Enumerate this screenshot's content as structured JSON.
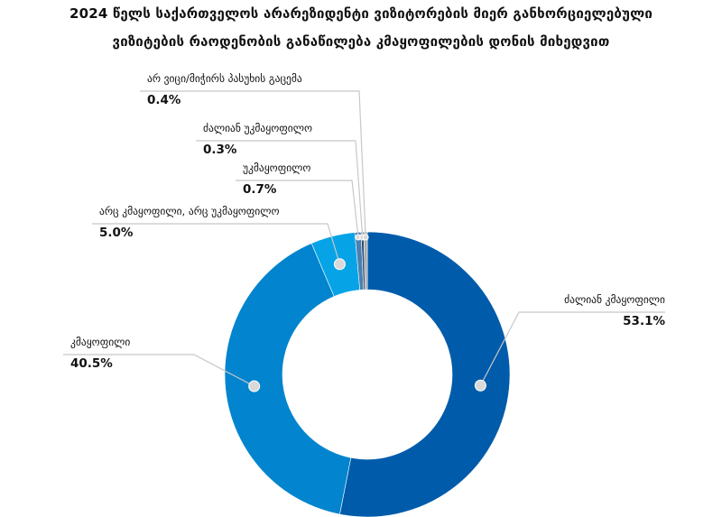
{
  "title_line1": "2024 წელს საქართველოს არარეზიდენტი ვიზიტორების მიერ განხორციელებული",
  "title_line2": "ვიზიტების რაოდენობის განაწილება კმაყოფილების დონის მიხედვით",
  "chart_data": {
    "type": "pie",
    "donut": true,
    "unit": "%",
    "slices": [
      {
        "label": "ძალიან კმაყოფილი",
        "value": 53.1,
        "display": "53.1%",
        "color": "#005baa"
      },
      {
        "label": "კმაყოფილი",
        "value": 40.5,
        "display": "40.5%",
        "color": "#0284cf"
      },
      {
        "label": "არც კმაყოფილი, არც უკმაყოფილო",
        "value": 5.0,
        "display": "5.0%",
        "color": "#06a4e6"
      },
      {
        "label": "უკმაყოფილო",
        "value": 0.7,
        "display": "0.7%",
        "color": "#4c7fb0"
      },
      {
        "label": "ძალიან უკმაყოფილო",
        "value": 0.3,
        "display": "0.3%",
        "color": "#2e4f7a"
      },
      {
        "label": "არ ვიცი/მიჭირს პასუხის გაცემა",
        "value": 0.4,
        "display": "0.4%",
        "color": "#a9a9a9"
      }
    ]
  }
}
